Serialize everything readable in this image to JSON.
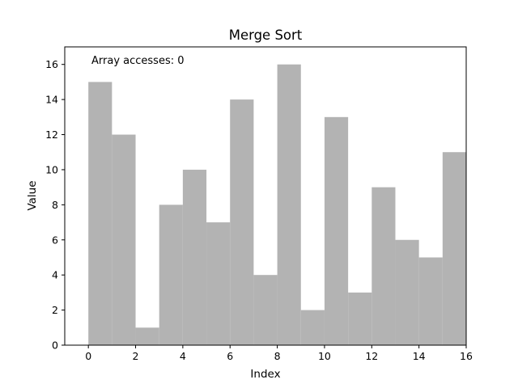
{
  "chart_data": {
    "type": "bar",
    "title": "Merge Sort",
    "xlabel": "Index",
    "ylabel": "Value",
    "annotation": "Array accesses: 0",
    "x": [
      0,
      1,
      2,
      3,
      4,
      5,
      6,
      7,
      8,
      9,
      10,
      11,
      12,
      13,
      14,
      15
    ],
    "values": [
      15,
      12,
      1,
      8,
      10,
      7,
      14,
      4,
      16,
      2,
      13,
      3,
      9,
      6,
      5,
      11
    ],
    "xlim": [
      -1,
      16
    ],
    "ylim": [
      0,
      17
    ],
    "xticks": [
      0,
      2,
      4,
      6,
      8,
      10,
      12,
      14,
      16
    ],
    "yticks": [
      0,
      2,
      4,
      6,
      8,
      10,
      12,
      14,
      16
    ],
    "bar_color": "#b3b3b3",
    "grid": false,
    "legend": "none"
  }
}
